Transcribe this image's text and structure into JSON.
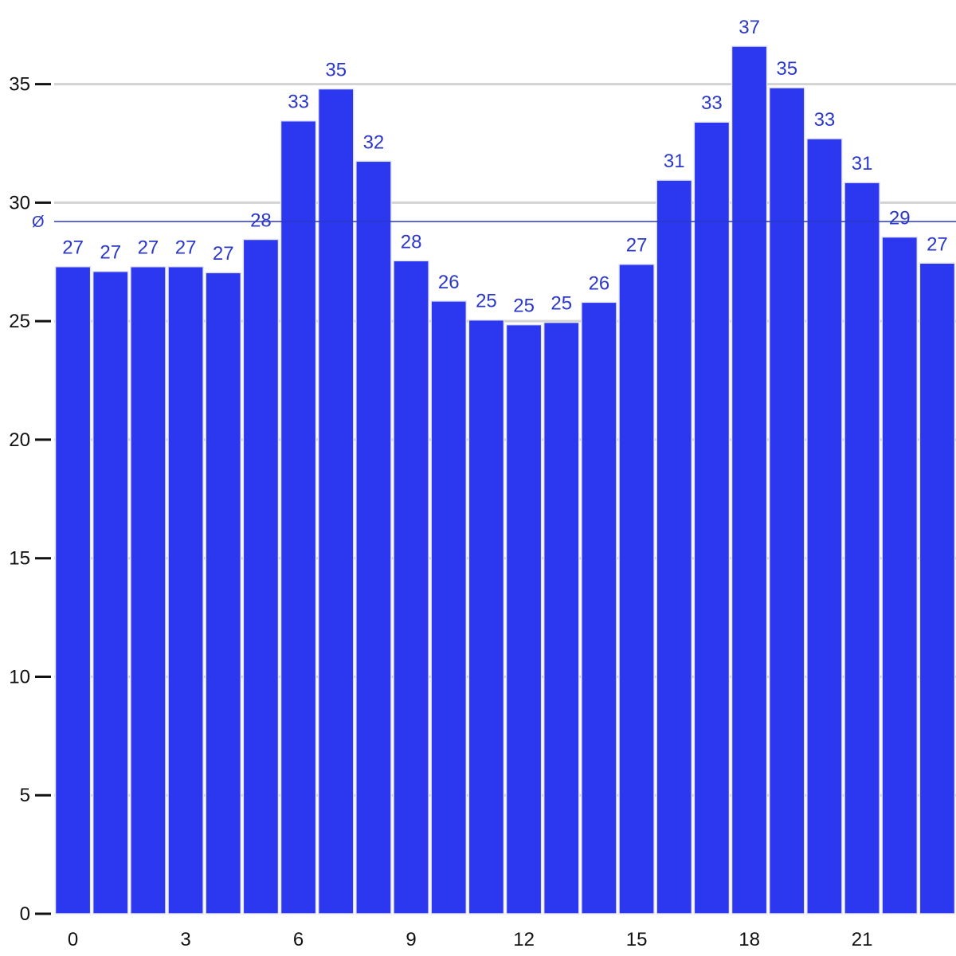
{
  "chart_data": {
    "type": "bar",
    "categories": [
      "0",
      "1",
      "2",
      "3",
      "4",
      "5",
      "6",
      "7",
      "8",
      "9",
      "10",
      "11",
      "12",
      "13",
      "14",
      "15",
      "16",
      "17",
      "18",
      "19",
      "20",
      "21",
      "22",
      "23"
    ],
    "values": [
      27.3,
      27.1,
      27.3,
      27.3,
      27.05,
      28.45,
      33.45,
      34.8,
      31.75,
      27.55,
      25.85,
      25.05,
      24.85,
      24.95,
      25.8,
      27.4,
      30.95,
      33.4,
      36.6,
      34.85,
      32.7,
      30.85,
      28.55,
      27.45
    ],
    "data_labels": [
      "27",
      "27",
      "27",
      "27",
      "27",
      "28",
      "33",
      "35",
      "32",
      "28",
      "26",
      "25",
      "25",
      "25",
      "26",
      "27",
      "31",
      "33",
      "37",
      "35",
      "33",
      "31",
      "29",
      "27"
    ],
    "title": "",
    "xlabel": "",
    "ylabel": "",
    "ylim": [
      0,
      36.6
    ],
    "y_ticks": [
      0,
      5,
      10,
      15,
      20,
      25,
      30,
      35
    ],
    "y_tick_labels": [
      "0",
      "5",
      "10",
      "15",
      "20",
      "25",
      "30",
      "35"
    ],
    "x_ticks": [
      0,
      3,
      6,
      9,
      12,
      15,
      18,
      21
    ],
    "x_tick_labels": [
      "0",
      "3",
      "6",
      "9",
      "12",
      "15",
      "18",
      "21"
    ],
    "average": {
      "label": "Ø",
      "value": 29.2
    },
    "grid": true,
    "legend": "none",
    "colors": {
      "bar": "#2b38ef",
      "label": "#2b38c9",
      "average": "#2b38c9",
      "grid": "#d3d3d3",
      "axis": "#111111"
    }
  }
}
